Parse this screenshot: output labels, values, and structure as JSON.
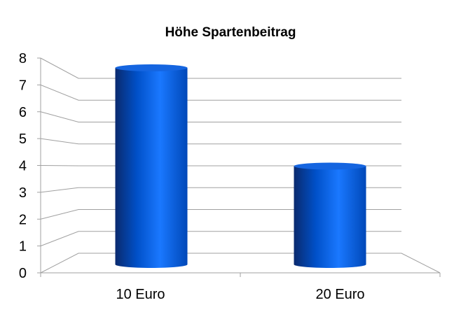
{
  "chart_data": {
    "type": "bar",
    "style": "3d-cylinder",
    "title": "Höhe Spartenbeitrag",
    "categories": [
      "10 Euro",
      "20 Euro"
    ],
    "values": [
      8,
      4
    ],
    "ylim": [
      0,
      8
    ],
    "yticks": [
      "0",
      "1",
      "2",
      "3",
      "4",
      "5",
      "6",
      "7",
      "8"
    ],
    "grid": true,
    "legend": "none",
    "colors": {
      "bar_dark": "#0a2a6e",
      "bar_mid": "#0050c8",
      "bar_light": "#1a78ff",
      "grid": "#a0a0a0"
    }
  }
}
